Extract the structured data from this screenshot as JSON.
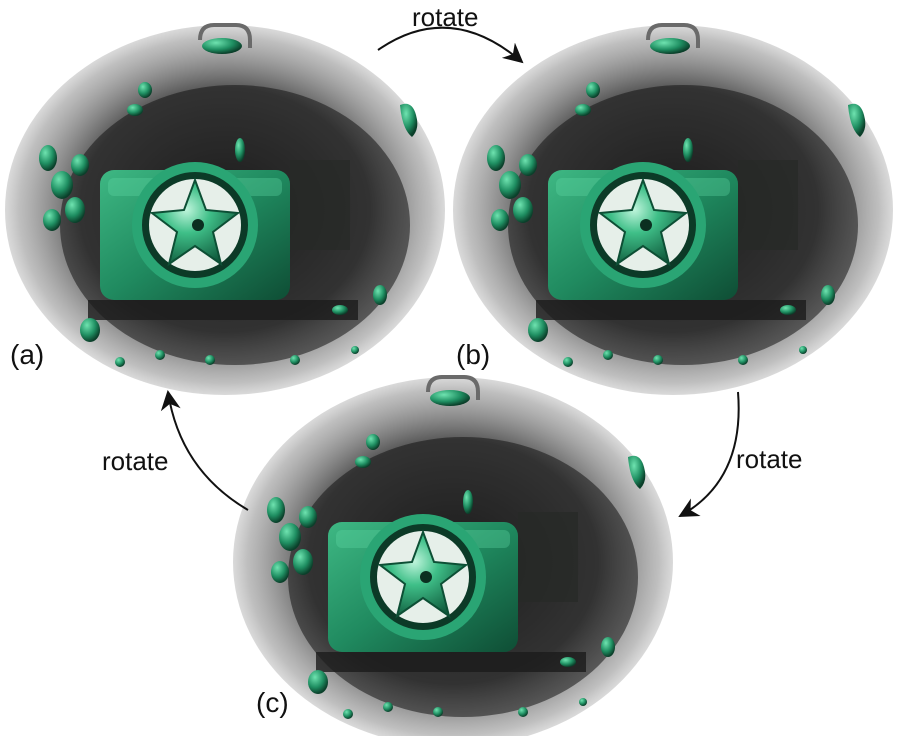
{
  "panels": [
    {
      "id": "a",
      "label": "(a)"
    },
    {
      "id": "b",
      "label": "(b)"
    },
    {
      "id": "c",
      "label": "(c)"
    }
  ],
  "arrows": [
    {
      "from": "a",
      "to": "b",
      "label": "rotate"
    },
    {
      "from": "b",
      "to": "c",
      "label": "rotate"
    },
    {
      "from": "c",
      "to": "a",
      "label": "rotate"
    }
  ],
  "colors": {
    "object": "#1f8f62",
    "object_highlight": "#7fe0b4",
    "volume": "#2b2b2b",
    "background": "#ffffff"
  }
}
